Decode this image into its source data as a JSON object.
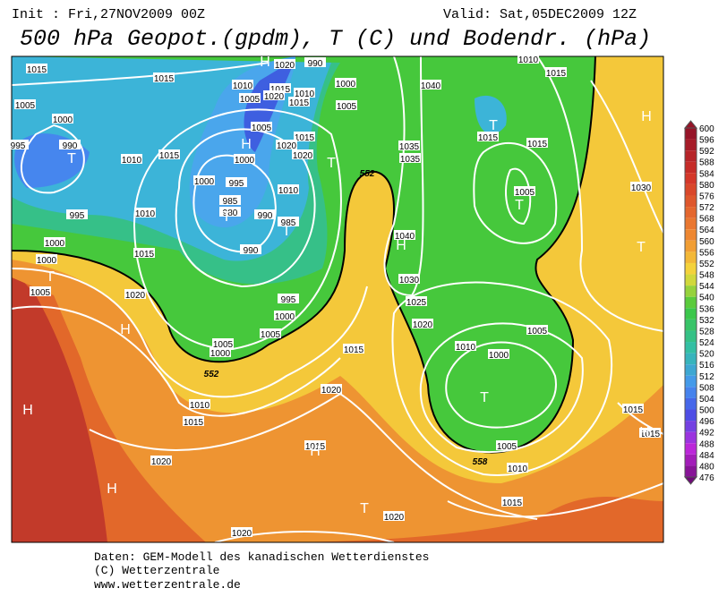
{
  "header": {
    "init": "Init : Fri,27NOV2009 00Z",
    "valid": "Valid: Sat,05DEC2009 12Z",
    "title": "500 hPa Geopot.(gpdm), T (C) und Bodendr. (hPa)"
  },
  "colorbar": {
    "labels": [
      600,
      596,
      592,
      588,
      584,
      580,
      576,
      572,
      568,
      564,
      560,
      556,
      552,
      548,
      544,
      540,
      536,
      532,
      528,
      524,
      520,
      516,
      512,
      508,
      504,
      500,
      496,
      492,
      488,
      484,
      480,
      476
    ]
  },
  "map_labels": [
    "1015",
    "1015",
    "1020",
    "990",
    "1000",
    "1010",
    "1015",
    "1010",
    "1005",
    "1020",
    "1015",
    "1005",
    "1005",
    "1000",
    "995",
    "990",
    "1005",
    "1015",
    "1020",
    "1020",
    "1010",
    "1015",
    "1000",
    "995",
    "1000",
    "1010",
    "985",
    "980",
    "990",
    "985",
    "995",
    "1010",
    "1000",
    "1000",
    "1015",
    "1005",
    "1020",
    "990",
    "995",
    "1000",
    "1005",
    "1005",
    "1000",
    "1010",
    "1015",
    "1020",
    "1020",
    "1015",
    "1015",
    "1020",
    "1020",
    "1040",
    "1035",
    "1035",
    "1040",
    "1030",
    "1025",
    "1020",
    "1010",
    "1005",
    "1000",
    "1005",
    "1010",
    "1015",
    "1015",
    "1015",
    "1015",
    "1015",
    "1005",
    "1030",
    "1015",
    "1010",
    "H",
    "H",
    "T",
    "T",
    "H",
    "T",
    "T",
    "T",
    "T",
    "H",
    "T",
    "T",
    "H",
    "H",
    "T",
    "H",
    "H",
    "H",
    "T",
    "552",
    "552",
    "558"
  ],
  "footer": [
    "Daten: GEM-Modell des kanadischen Wetterdienstes",
    "(C) Wetterzentrale",
    "www.wetterzentrale.de"
  ]
}
